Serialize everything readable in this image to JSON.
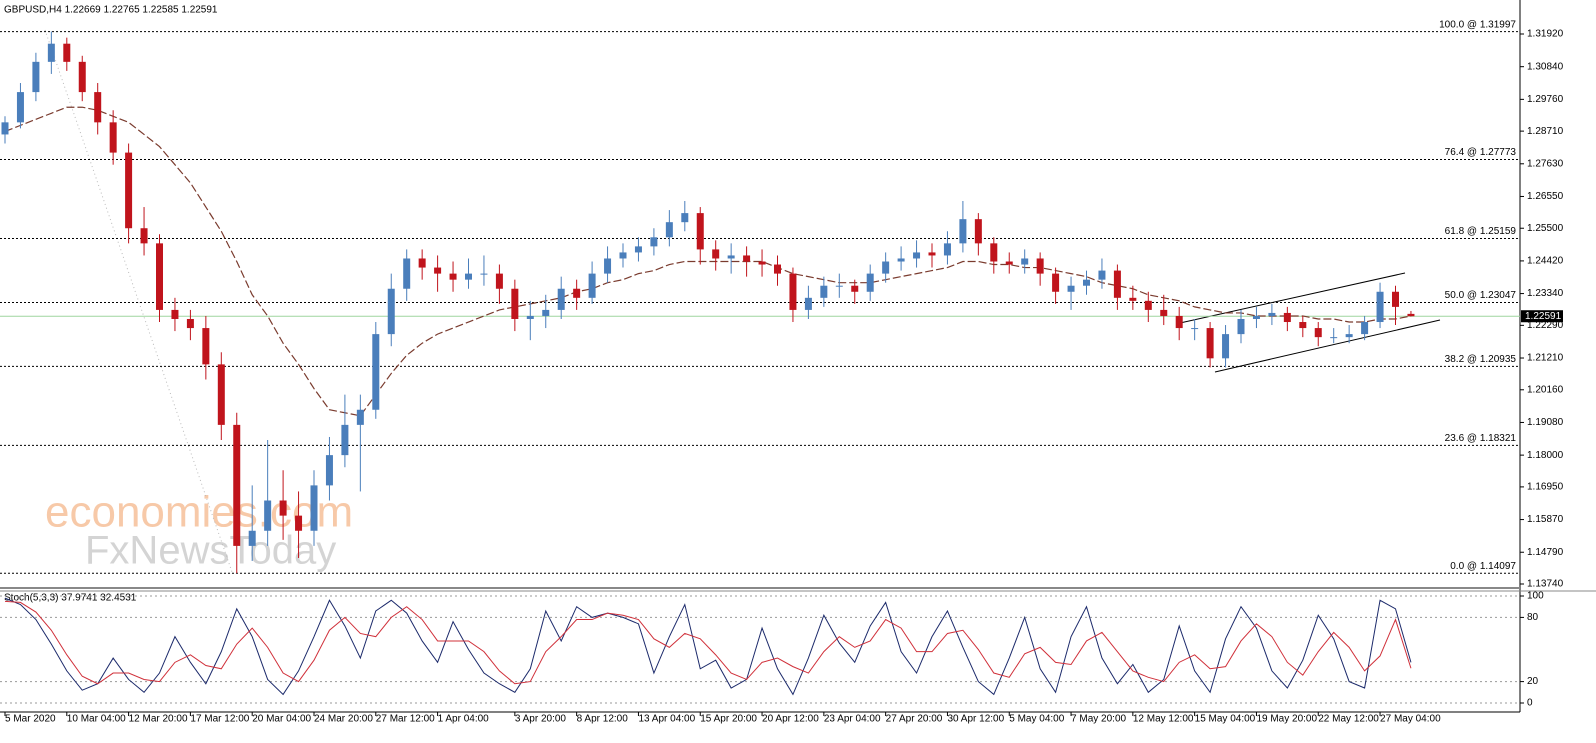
{
  "chart_data": {
    "type": "candlestick",
    "title": "GBPUSD,H4  1.22669 1.22765 1.22585 1.22591",
    "categories": [
      "5 Mar 2020",
      null,
      null,
      null,
      "10 Mar 04:00",
      null,
      null,
      null,
      "12 Mar 20:00",
      null,
      null,
      null,
      "17 Mar 12:00",
      null,
      null,
      null,
      "20 Mar 04:00",
      null,
      null,
      null,
      "24 Mar 20:00",
      null,
      null,
      null,
      "27 Mar 12:00",
      null,
      null,
      null,
      "1 Apr 04:00",
      null,
      null,
      null,
      null,
      "3 Apr 20:00",
      null,
      null,
      null,
      "8 Apr 12:00",
      null,
      null,
      null,
      "13 Apr 04:00",
      null,
      null,
      null,
      "15 Apr 20:00",
      null,
      null,
      null,
      "20 Apr 12:00",
      null,
      null,
      null,
      "23 Apr 04:00",
      null,
      null,
      null,
      "27 Apr 20:00",
      null,
      null,
      null,
      "30 Apr 12:00",
      null,
      null,
      null,
      "5 May 04:00",
      null,
      null,
      null,
      "7 May 20:00",
      null,
      null,
      null,
      "12 May 12:00",
      null,
      null,
      null,
      "15 May 04:00",
      null,
      null,
      null,
      "19 May 20:00",
      null,
      null,
      null,
      "22 May 12:00",
      null,
      null,
      null,
      "27 May 04:00",
      null,
      null
    ],
    "candles": [
      [
        1.286,
        1.292,
        1.283,
        1.29
      ],
      [
        1.29,
        1.303,
        1.288,
        1.3
      ],
      [
        1.3,
        1.313,
        1.297,
        1.31
      ],
      [
        1.31,
        1.32,
        1.306,
        1.316
      ],
      [
        1.316,
        1.318,
        1.307,
        1.31
      ],
      [
        1.31,
        1.312,
        1.297,
        1.3
      ],
      [
        1.3,
        1.303,
        1.286,
        1.29
      ],
      [
        1.29,
        1.294,
        1.276,
        1.28
      ],
      [
        1.28,
        1.283,
        1.25,
        1.255
      ],
      [
        1.255,
        1.262,
        1.246,
        1.25
      ],
      [
        1.25,
        1.253,
        1.224,
        1.228
      ],
      [
        1.228,
        1.232,
        1.221,
        1.225
      ],
      [
        1.225,
        1.228,
        1.218,
        1.222
      ],
      [
        1.222,
        1.226,
        1.205,
        1.21
      ],
      [
        1.21,
        1.214,
        1.185,
        1.19
      ],
      [
        1.19,
        1.194,
        1.141,
        1.15
      ],
      [
        1.15,
        1.17,
        1.145,
        1.155
      ],
      [
        1.155,
        1.185,
        1.15,
        1.165
      ],
      [
        1.165,
        1.175,
        1.152,
        1.16
      ],
      [
        1.16,
        1.168,
        1.146,
        1.155
      ],
      [
        1.155,
        1.175,
        1.15,
        1.17
      ],
      [
        1.17,
        1.186,
        1.165,
        1.18
      ],
      [
        1.18,
        1.2,
        1.176,
        1.19
      ],
      [
        1.19,
        1.2,
        1.168,
        1.195
      ],
      [
        1.195,
        1.224,
        1.192,
        1.22
      ],
      [
        1.22,
        1.24,
        1.216,
        1.235
      ],
      [
        1.235,
        1.248,
        1.231,
        1.245
      ],
      [
        1.245,
        1.248,
        1.238,
        1.242
      ],
      [
        1.242,
        1.246,
        1.234,
        1.24
      ],
      [
        1.24,
        1.244,
        1.234,
        1.238
      ],
      [
        1.238,
        1.245,
        1.235,
        1.24
      ],
      [
        1.24,
        1.246,
        1.236,
        1.24
      ],
      [
        1.24,
        1.243,
        1.23,
        1.235
      ],
      [
        1.235,
        1.238,
        1.221,
        1.225
      ],
      [
        1.225,
        1.231,
        1.218,
        1.226
      ],
      [
        1.226,
        1.233,
        1.222,
        1.228
      ],
      [
        1.228,
        1.239,
        1.225,
        1.235
      ],
      [
        1.235,
        1.238,
        1.228,
        1.232
      ],
      [
        1.232,
        1.244,
        1.23,
        1.24
      ],
      [
        1.24,
        1.249,
        1.237,
        1.245
      ],
      [
        1.245,
        1.25,
        1.242,
        1.247
      ],
      [
        1.247,
        1.252,
        1.244,
        1.249
      ],
      [
        1.249,
        1.255,
        1.246,
        1.252
      ],
      [
        1.252,
        1.261,
        1.249,
        1.257
      ],
      [
        1.257,
        1.264,
        1.254,
        1.26
      ],
      [
        1.26,
        1.262,
        1.243,
        1.248
      ],
      [
        1.248,
        1.251,
        1.241,
        1.245
      ],
      [
        1.245,
        1.25,
        1.24,
        1.246
      ],
      [
        1.246,
        1.249,
        1.239,
        1.244
      ],
      [
        1.244,
        1.248,
        1.239,
        1.243
      ],
      [
        1.243,
        1.246,
        1.236,
        1.24
      ],
      [
        1.24,
        1.242,
        1.224,
        1.228
      ],
      [
        1.228,
        1.236,
        1.225,
        1.232
      ],
      [
        1.232,
        1.239,
        1.229,
        1.236
      ],
      [
        1.236,
        1.24,
        1.232,
        1.236
      ],
      [
        1.236,
        1.238,
        1.23,
        1.234
      ],
      [
        1.234,
        1.243,
        1.231,
        1.24
      ],
      [
        1.24,
        1.247,
        1.237,
        1.244
      ],
      [
        1.244,
        1.249,
        1.241,
        1.245
      ],
      [
        1.245,
        1.251,
        1.242,
        1.247
      ],
      [
        1.247,
        1.25,
        1.242,
        1.246
      ],
      [
        1.246,
        1.254,
        1.243,
        1.25
      ],
      [
        1.25,
        1.264,
        1.247,
        1.258
      ],
      [
        1.258,
        1.26,
        1.246,
        1.25
      ],
      [
        1.25,
        1.252,
        1.24,
        1.244
      ],
      [
        1.244,
        1.247,
        1.24,
        1.243
      ],
      [
        1.243,
        1.248,
        1.24,
        1.245
      ],
      [
        1.245,
        1.247,
        1.236,
        1.24
      ],
      [
        1.24,
        1.242,
        1.23,
        1.234
      ],
      [
        1.234,
        1.239,
        1.228,
        1.236
      ],
      [
        1.236,
        1.241,
        1.233,
        1.238
      ],
      [
        1.238,
        1.245,
        1.235,
        1.241
      ],
      [
        1.241,
        1.243,
        1.228,
        1.232
      ],
      [
        1.232,
        1.236,
        1.228,
        1.231
      ],
      [
        1.231,
        1.234,
        1.224,
        1.228
      ],
      [
        1.228,
        1.233,
        1.223,
        1.226
      ],
      [
        1.226,
        1.229,
        1.218,
        1.222
      ],
      [
        1.222,
        1.225,
        1.218,
        1.222
      ],
      [
        1.222,
        1.224,
        1.209,
        1.212
      ],
      [
        1.212,
        1.223,
        1.209,
        1.22
      ],
      [
        1.22,
        1.228,
        1.217,
        1.225
      ],
      [
        1.225,
        1.229,
        1.222,
        1.226
      ],
      [
        1.226,
        1.23,
        1.223,
        1.227
      ],
      [
        1.227,
        1.229,
        1.221,
        1.224
      ],
      [
        1.224,
        1.226,
        1.219,
        1.222
      ],
      [
        1.222,
        1.224,
        1.216,
        1.219
      ],
      [
        1.219,
        1.222,
        1.217,
        1.219
      ],
      [
        1.219,
        1.223,
        1.217,
        1.22
      ],
      [
        1.22,
        1.226,
        1.218,
        1.224
      ],
      [
        1.224,
        1.237,
        1.222,
        1.234
      ],
      [
        1.234,
        1.236,
        1.223,
        1.229
      ],
      [
        1.22669,
        1.22765,
        1.22585,
        1.22591
      ]
    ],
    "up_color": "#4a7ebb",
    "down_color": "#c0141c",
    "ylim": [
      1.13608,
      1.32978
    ],
    "yticks": [
      {
        "value": 1.3192,
        "label": "1.31920"
      },
      {
        "value": 1.3084,
        "label": "1.30840"
      },
      {
        "value": 1.2976,
        "label": "1.29760"
      },
      {
        "value": 1.2871,
        "label": "1.28710"
      },
      {
        "value": 1.2763,
        "label": "1.27630"
      },
      {
        "value": 1.2655,
        "label": "1.26550"
      },
      {
        "value": 1.255,
        "label": "1.25500"
      },
      {
        "value": 1.2442,
        "label": "1.24420"
      },
      {
        "value": 1.2334,
        "label": "1.23340"
      },
      {
        "value": 1.2229,
        "label": "1.22290"
      },
      {
        "value": 1.2121,
        "label": "1.21210"
      },
      {
        "value": 1.2016,
        "label": "1.20160"
      },
      {
        "value": 1.1908,
        "label": "1.19080"
      },
      {
        "value": 1.18,
        "label": "1.18000"
      },
      {
        "value": 1.1695,
        "label": "1.16950"
      },
      {
        "value": 1.1587,
        "label": "1.15870"
      },
      {
        "value": 1.1479,
        "label": "1.14790"
      },
      {
        "value": 1.1374,
        "label": "1.13740"
      }
    ],
    "fib_levels": [
      {
        "value": 1.31997,
        "label": "100.0 @ 1.31997"
      },
      {
        "value": 1.27773,
        "label": "76.4 @ 1.27773"
      },
      {
        "value": 1.25159,
        "label": "61.8 @ 1.25159"
      },
      {
        "value": 1.23047,
        "label": "50.0 @ 1.23047"
      },
      {
        "value": 1.20935,
        "label": "38.2 @ 1.20935"
      },
      {
        "value": 1.18321,
        "label": "23.6 @ 1.18321"
      },
      {
        "value": 1.14097,
        "label": "0.0 @ 1.14097"
      }
    ],
    "current_price": {
      "value": 1.22591,
      "label": "1.22591"
    },
    "price_line_color": "#9fd59f",
    "ma": {
      "color": "#7a3b2e",
      "values": [
        1.287,
        1.289,
        1.291,
        1.293,
        1.295,
        1.295,
        1.294,
        1.292,
        1.29,
        1.286,
        1.282,
        1.276,
        1.27,
        1.262,
        1.254,
        1.244,
        1.233,
        1.226,
        1.217,
        1.21,
        1.202,
        1.195,
        1.194,
        1.193,
        1.2,
        1.207,
        1.213,
        1.217,
        1.22,
        1.222,
        1.224,
        1.226,
        1.228,
        1.229,
        1.23,
        1.231,
        1.232,
        1.234,
        1.235,
        1.237,
        1.238,
        1.24,
        1.241,
        1.243,
        1.244,
        1.244,
        1.244,
        1.244,
        1.244,
        1.244,
        1.242,
        1.24,
        1.239,
        1.238,
        1.237,
        1.237,
        1.237,
        1.238,
        1.239,
        1.24,
        1.241,
        1.242,
        1.244,
        1.244,
        1.243,
        1.243,
        1.242,
        1.242,
        1.241,
        1.24,
        1.239,
        1.237,
        1.236,
        1.235,
        1.233,
        1.232,
        1.231,
        1.229,
        1.228,
        1.227,
        1.227,
        1.226,
        1.226,
        1.226,
        1.226,
        1.225,
        1.225,
        1.224,
        1.224,
        1.225,
        1.225,
        1.226
      ]
    },
    "indicator": {
      "type": "line",
      "title": "Stoch(5,3,3) 37.9741 32.4531",
      "ylim": [
        0,
        100
      ],
      "yticks": [
        0,
        20,
        80,
        100
      ],
      "series": [
        {
          "color": "#1c2a6b",
          "values": [
            98,
            92,
            78,
            55,
            30,
            12,
            18,
            42,
            22,
            10,
            28,
            62,
            38,
            18,
            48,
            88,
            62,
            22,
            8,
            30,
            62,
            96,
            72,
            42,
            86,
            96,
            84,
            58,
            38,
            76,
            50,
            28,
            18,
            10,
            32,
            86,
            58,
            90,
            80,
            84,
            80,
            74,
            28,
            62,
            92,
            32,
            40,
            14,
            22,
            70,
            32,
            8,
            42,
            82,
            56,
            38,
            72,
            94,
            48,
            28,
            62,
            86,
            52,
            20,
            8,
            42,
            80,
            32,
            10,
            62,
            90,
            42,
            18,
            36,
            10,
            22,
            72,
            30,
            10,
            60,
            90,
            70,
            30,
            14,
            40,
            82,
            60,
            20,
            14,
            96,
            88,
            37.9741
          ]
        },
        {
          "color": "#d0303a",
          "values": [
            95,
            94,
            85,
            68,
            45,
            25,
            18,
            28,
            28,
            22,
            20,
            38,
            45,
            35,
            32,
            55,
            70,
            52,
            28,
            20,
            40,
            68,
            80,
            65,
            62,
            80,
            90,
            78,
            58,
            58,
            58,
            48,
            30,
            18,
            20,
            48,
            62,
            78,
            78,
            84,
            82,
            78,
            60,
            52,
            65,
            60,
            45,
            28,
            22,
            38,
            42,
            34,
            28,
            48,
            62,
            52,
            58,
            78,
            70,
            48,
            48,
            65,
            68,
            50,
            28,
            24,
            46,
            52,
            38,
            36,
            58,
            66,
            48,
            30,
            24,
            20,
            38,
            45,
            32,
            34,
            58,
            74,
            62,
            38,
            26,
            48,
            66,
            52,
            30,
            44,
            78,
            32.4531
          ]
        }
      ]
    },
    "watermark": [
      "economies.com",
      "FxNewsToday"
    ]
  }
}
